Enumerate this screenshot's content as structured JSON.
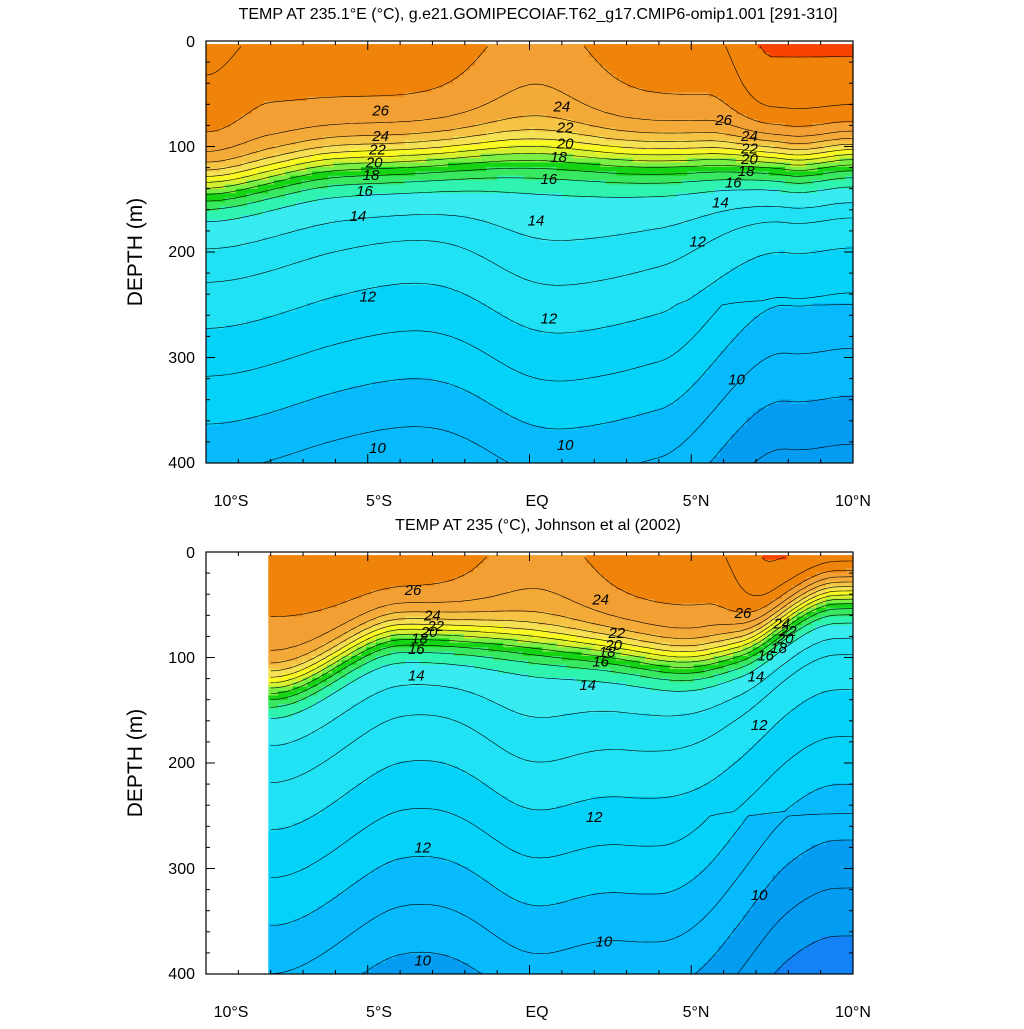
{
  "chart_data": [
    {
      "type": "heatmap",
      "title": "TEMP AT 235.1°E (°C), g.e21.GOMIPECOIAF.T62_g17.CMIP6-omip1.001 [291-310]",
      "xlabel": "",
      "ylabel": "DEPTH (m)",
      "xlim": [
        -10,
        10
      ],
      "ylim": [
        400,
        0
      ],
      "x_ticks": [
        {
          "value": -10,
          "label": "10°S"
        },
        {
          "value": -5,
          "label": "5°S"
        },
        {
          "value": 0,
          "label": "EQ"
        },
        {
          "value": 5,
          "label": "5°N"
        },
        {
          "value": 10,
          "label": "10°N"
        }
      ],
      "y_ticks": [
        {
          "value": 0,
          "label": "0"
        },
        {
          "value": 100,
          "label": "100"
        },
        {
          "value": 200,
          "label": "200"
        },
        {
          "value": 300,
          "label": "300"
        },
        {
          "value": 400,
          "label": "400"
        }
      ],
      "data_x_range": [
        -10,
        10
      ],
      "contour_labels": [
        {
          "x": -4.6,
          "y": 66,
          "label": "26"
        },
        {
          "x": -4.6,
          "y": 90,
          "label": "24"
        },
        {
          "x": -4.7,
          "y": 103,
          "label": "22"
        },
        {
          "x": -4.8,
          "y": 115,
          "label": "20"
        },
        {
          "x": -4.9,
          "y": 127,
          "label": "18"
        },
        {
          "x": -5.1,
          "y": 142,
          "label": "16"
        },
        {
          "x": -5.3,
          "y": 166,
          "label": "14"
        },
        {
          "x": -5.0,
          "y": 242,
          "label": "12"
        },
        {
          "x": -4.7,
          "y": 386,
          "label": "10"
        },
        {
          "x": 1.0,
          "y": 62,
          "label": "24"
        },
        {
          "x": 1.1,
          "y": 82,
          "label": "22"
        },
        {
          "x": 1.1,
          "y": 97,
          "label": "20"
        },
        {
          "x": 0.9,
          "y": 110,
          "label": "18"
        },
        {
          "x": 0.6,
          "y": 131,
          "label": "16"
        },
        {
          "x": 0.2,
          "y": 170,
          "label": "14"
        },
        {
          "x": 0.6,
          "y": 263,
          "label": "12"
        },
        {
          "x": 1.1,
          "y": 383,
          "label": "10"
        },
        {
          "x": 6.0,
          "y": 75,
          "label": "26"
        },
        {
          "x": 6.8,
          "y": 90,
          "label": "24"
        },
        {
          "x": 6.8,
          "y": 102,
          "label": "22"
        },
        {
          "x": 6.8,
          "y": 112,
          "label": "20"
        },
        {
          "x": 6.7,
          "y": 123,
          "label": "18"
        },
        {
          "x": 6.3,
          "y": 134,
          "label": "16"
        },
        {
          "x": 5.9,
          "y": 153,
          "label": "14"
        },
        {
          "x": 5.2,
          "y": 190,
          "label": "12"
        },
        {
          "x": 6.4,
          "y": 321,
          "label": "10"
        }
      ]
    },
    {
      "type": "heatmap",
      "title": "TEMP AT 235 (°C), Johnson et al (2002)",
      "xlabel": "",
      "ylabel": "DEPTH (m)",
      "xlim": [
        -10,
        10
      ],
      "ylim": [
        400,
        0
      ],
      "x_ticks": [
        {
          "value": -10,
          "label": "10°S"
        },
        {
          "value": -5,
          "label": "5°S"
        },
        {
          "value": 0,
          "label": "EQ"
        },
        {
          "value": 5,
          "label": "5°N"
        },
        {
          "value": 10,
          "label": "10°N"
        }
      ],
      "y_ticks": [
        {
          "value": 0,
          "label": "0"
        },
        {
          "value": 100,
          "label": "100"
        },
        {
          "value": 200,
          "label": "200"
        },
        {
          "value": 300,
          "label": "300"
        },
        {
          "value": 400,
          "label": "400"
        }
      ],
      "data_x_range": [
        -8,
        10
      ],
      "contour_labels": [
        {
          "x": -3.6,
          "y": 36,
          "label": "26"
        },
        {
          "x": -3.0,
          "y": 60,
          "label": "24"
        },
        {
          "x": -2.9,
          "y": 70,
          "label": "22"
        },
        {
          "x": -3.1,
          "y": 76,
          "label": "20"
        },
        {
          "x": -3.4,
          "y": 82,
          "label": "18"
        },
        {
          "x": -3.5,
          "y": 92,
          "label": "16"
        },
        {
          "x": -3.5,
          "y": 117,
          "label": "14"
        },
        {
          "x": -3.3,
          "y": 280,
          "label": "12"
        },
        {
          "x": -3.3,
          "y": 387,
          "label": "10"
        },
        {
          "x": 2.2,
          "y": 45,
          "label": "24"
        },
        {
          "x": 2.7,
          "y": 77,
          "label": "22"
        },
        {
          "x": 2.6,
          "y": 88,
          "label": "20"
        },
        {
          "x": 2.4,
          "y": 95,
          "label": "18"
        },
        {
          "x": 2.2,
          "y": 104,
          "label": "16"
        },
        {
          "x": 1.8,
          "y": 126,
          "label": "14"
        },
        {
          "x": 2.0,
          "y": 251,
          "label": "12"
        },
        {
          "x": 2.3,
          "y": 369,
          "label": "10"
        },
        {
          "x": 6.6,
          "y": 58,
          "label": "26"
        },
        {
          "x": 7.8,
          "y": 68,
          "label": "24"
        },
        {
          "x": 8.0,
          "y": 75,
          "label": "22"
        },
        {
          "x": 7.9,
          "y": 82,
          "label": "20"
        },
        {
          "x": 7.7,
          "y": 91,
          "label": "18"
        },
        {
          "x": 7.3,
          "y": 98,
          "label": "16"
        },
        {
          "x": 7.0,
          "y": 118,
          "label": "14"
        },
        {
          "x": 7.1,
          "y": 164,
          "label": "12"
        },
        {
          "x": 7.1,
          "y": 325,
          "label": "10"
        }
      ]
    }
  ],
  "colors": {
    "band_colors": [
      "#0a5cf0",
      "#1382f5",
      "#039cf0",
      "#07bafc",
      "#04d2f9",
      "#20e2f4",
      "#38ebf0",
      "#2ef4b0",
      "#38e860",
      "#14d414",
      "#7af044",
      "#d4f030",
      "#fafa22",
      "#f6e054",
      "#f6c444",
      "#f4aa38",
      "#f2a034",
      "#f0840a",
      "#f84400"
    ]
  }
}
